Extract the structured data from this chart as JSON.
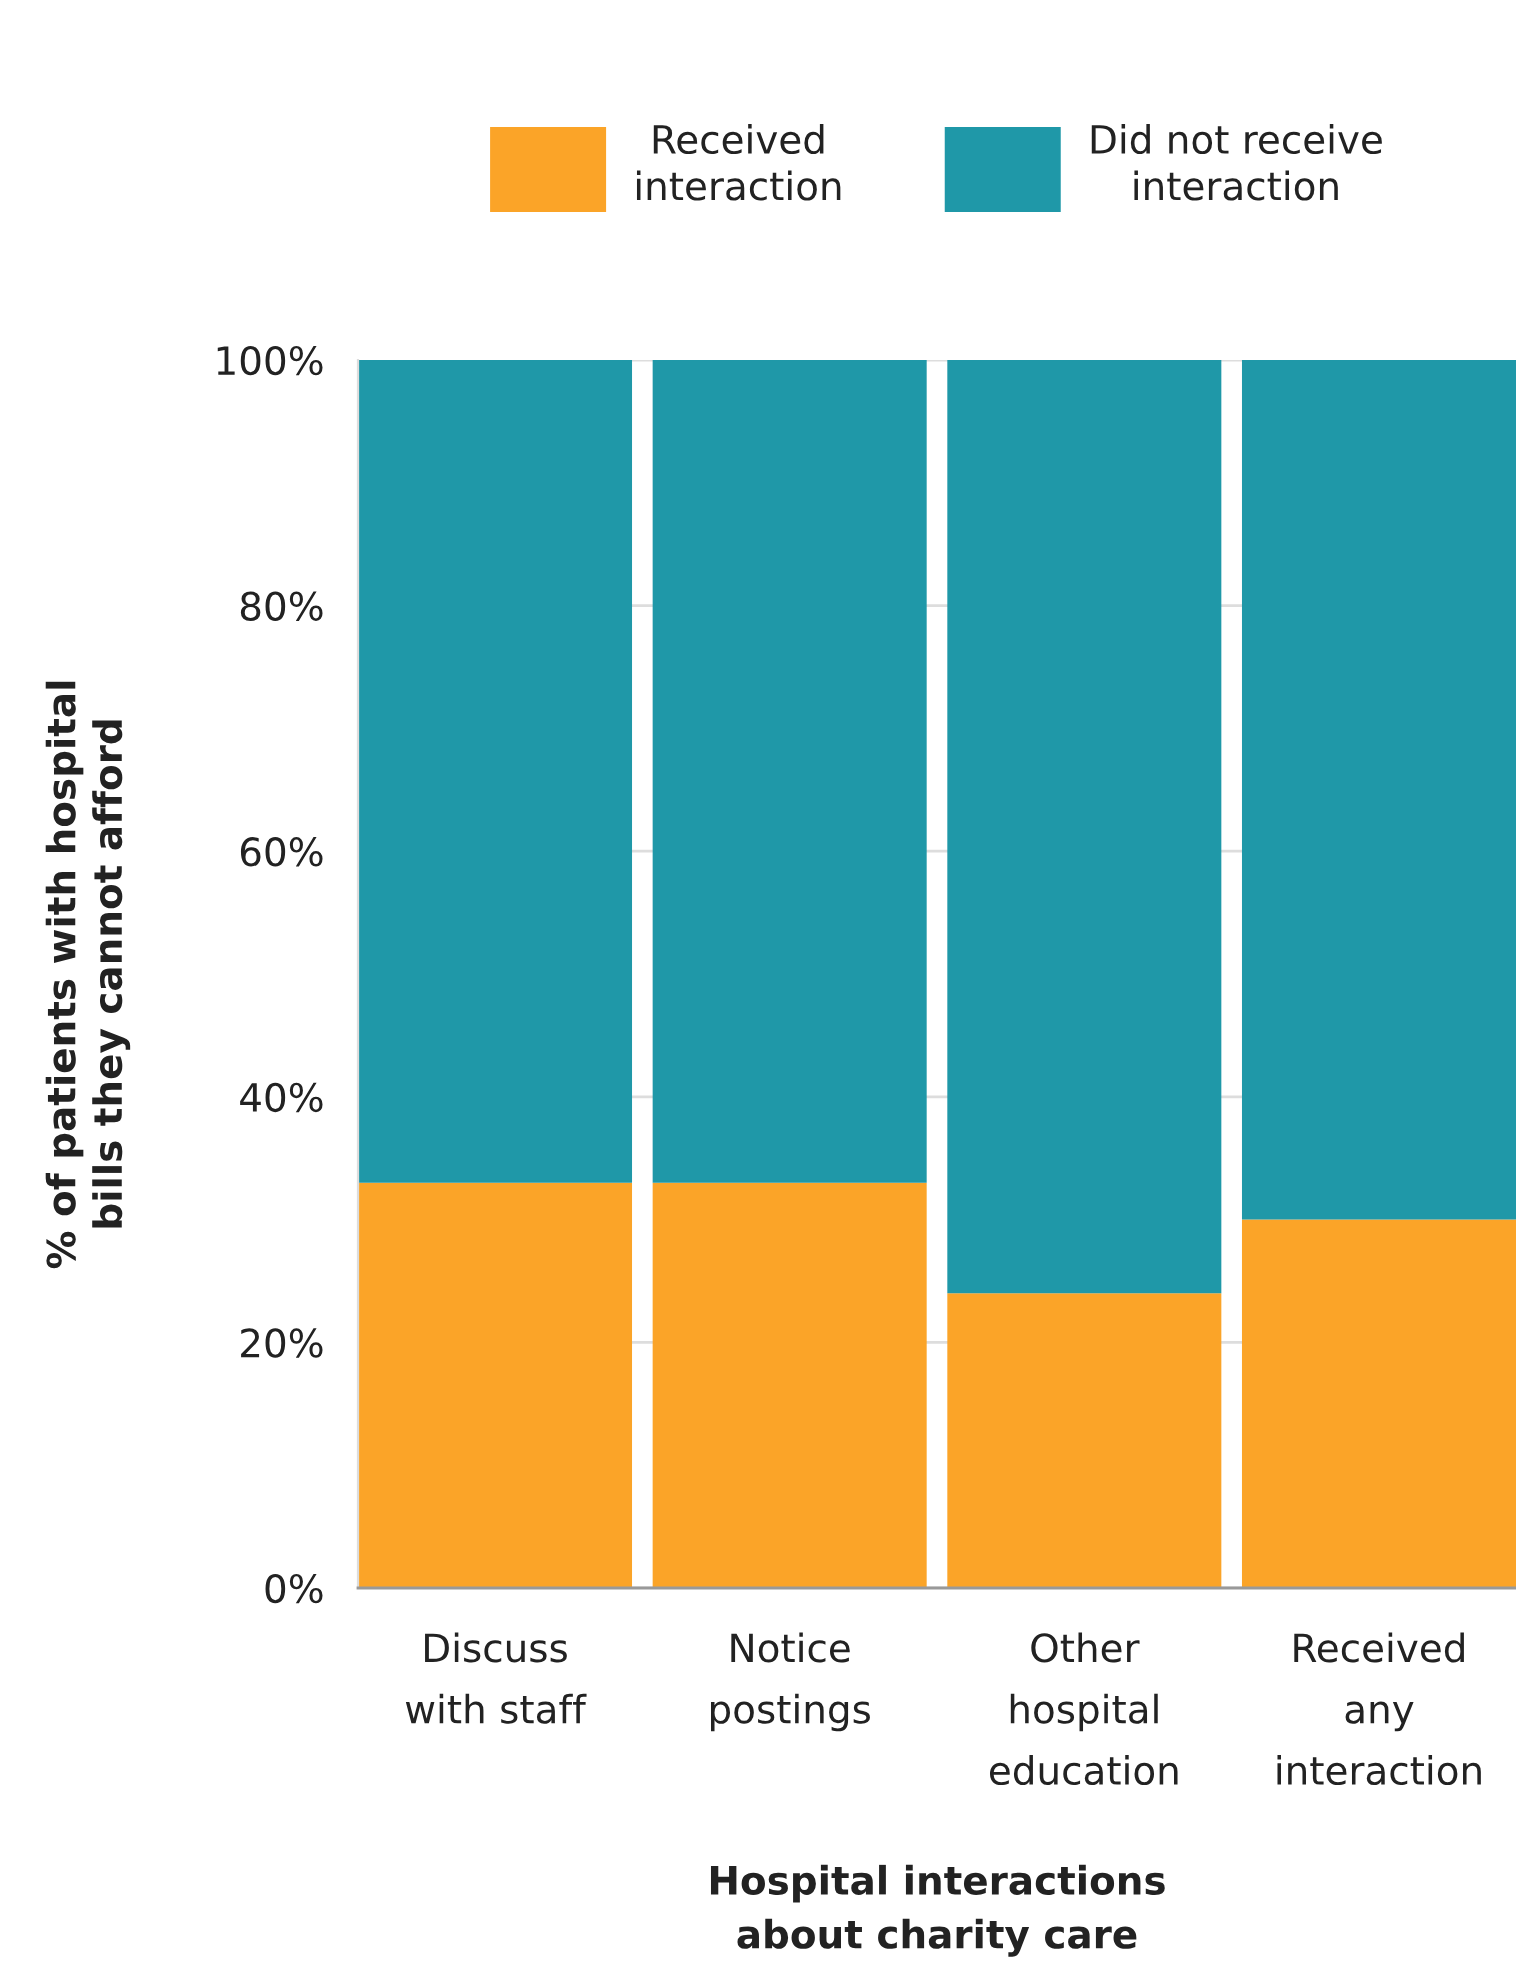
{
  "chart_data": {
    "type": "bar",
    "stacked": true,
    "categories": [
      "Discuss\nwith staff",
      "Notice\npostings",
      "Other\nhospital\neducation",
      "Received\nany\ninteraction"
    ],
    "series": [
      {
        "name": "Received\ninteraction",
        "color": "#fba428",
        "values": [
          33,
          33,
          24,
          30
        ]
      },
      {
        "name": "Did not receive\ninteraction",
        "color": "#1f98a8",
        "values": [
          67,
          67,
          76,
          70
        ]
      }
    ],
    "xlabel": "Hospital interactions\nabout charity care",
    "ylabel": "% of patients with hospital\nbills they cannot afford",
    "ylim": [
      0,
      100
    ],
    "yticks": [
      {
        "value": 0,
        "label": "0%"
      },
      {
        "value": 20,
        "label": "20%"
      },
      {
        "value": 40,
        "label": "40%"
      },
      {
        "value": 60,
        "label": "60%"
      },
      {
        "value": 80,
        "label": "80%"
      },
      {
        "value": 100,
        "label": "100%"
      }
    ],
    "grid": "y",
    "legend": "top"
  }
}
